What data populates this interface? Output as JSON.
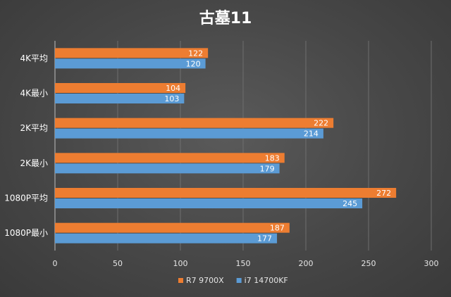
{
  "chart_data": {
    "type": "bar",
    "orientation": "horizontal",
    "title": "古墓11",
    "categories": [
      "4K平均",
      "4K最小",
      "2K平均",
      "2K最小",
      "1080P平均",
      "1080P最小"
    ],
    "series": [
      {
        "name": "R7 9700X",
        "color": "#ed7d31",
        "values": [
          122,
          104,
          222,
          183,
          272,
          187
        ]
      },
      {
        "name": "i7 14700KF",
        "color": "#5b9bd5",
        "values": [
          120,
          103,
          214,
          179,
          245,
          177
        ]
      }
    ],
    "xlim": [
      0,
      300
    ],
    "xticks": [
      0,
      50,
      100,
      150,
      200,
      250,
      300
    ],
    "grid": true,
    "legend": "bottom"
  }
}
